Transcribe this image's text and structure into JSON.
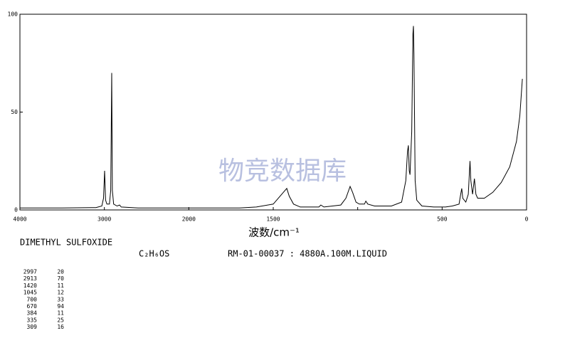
{
  "chart_data": {
    "type": "line",
    "x_label": "波数/cm⁻¹",
    "x": [
      4000,
      3500,
      3100,
      3030,
      3010,
      2997,
      2985,
      2970,
      2940,
      2925,
      2913,
      2905,
      2890,
      2850,
      2820,
      2800,
      2600,
      2000,
      1700,
      1600,
      1500,
      1440,
      1420,
      1405,
      1380,
      1340,
      1300,
      1230,
      1218,
      1200,
      1100,
      1070,
      1045,
      1030,
      1010,
      990,
      960,
      952,
      940,
      900,
      800,
      740,
      715,
      705,
      700,
      695,
      690,
      680,
      673,
      670,
      667,
      660,
      650,
      620,
      550,
      480,
      440,
      400,
      390,
      384,
      378,
      360,
      345,
      335,
      330,
      320,
      309,
      300,
      290,
      250,
      200,
      150,
      100,
      60,
      40,
      25
    ],
    "series": [
      {
        "color": "#000000",
        "values": [
          1,
          1,
          1.2,
          2,
          6,
          20,
          5,
          3,
          3,
          10,
          70,
          10,
          3,
          2,
          2.5,
          1.5,
          1,
          1,
          1,
          1.5,
          3,
          9,
          11,
          7,
          3,
          1.5,
          1.5,
          1.5,
          2.5,
          1.5,
          2.5,
          6,
          12,
          9,
          4,
          3,
          3,
          4.5,
          3,
          2,
          2,
          4,
          15,
          30,
          33,
          20,
          18,
          40,
          90,
          94,
          80,
          15,
          5,
          2,
          1.5,
          1.5,
          2,
          3,
          8,
          11,
          6,
          4,
          8,
          25,
          15,
          8,
          16,
          8,
          6,
          6,
          9,
          14,
          22,
          35,
          48,
          67
        ]
      }
    ],
    "xlim": [
      4000,
      0
    ],
    "xscale_change": {
      "at": 2000,
      "factor": 2
    },
    "xticks": [
      4000,
      3000,
      2000,
      1500,
      1000,
      500,
      0
    ],
    "xtick_labels": [
      "4000",
      "3000",
      "2000",
      "1500",
      null,
      "500",
      "0"
    ],
    "ylim": [
      0,
      100
    ],
    "yticks": [
      0,
      50,
      100
    ],
    "watermark": "物竞数据库"
  },
  "compound": "DIMETHYL SULFOXIDE",
  "formula": "C₂H₆OS",
  "record": "RM-01-00037 : 4880A.100M.LIQUID",
  "peaks": [
    [
      2997,
      20
    ],
    [
      2913,
      70
    ],
    [
      1420,
      11
    ],
    [
      1045,
      12
    ],
    [
      700,
      33
    ],
    [
      670,
      94
    ],
    [
      384,
      11
    ],
    [
      335,
      25
    ],
    [
      309,
      16
    ]
  ]
}
